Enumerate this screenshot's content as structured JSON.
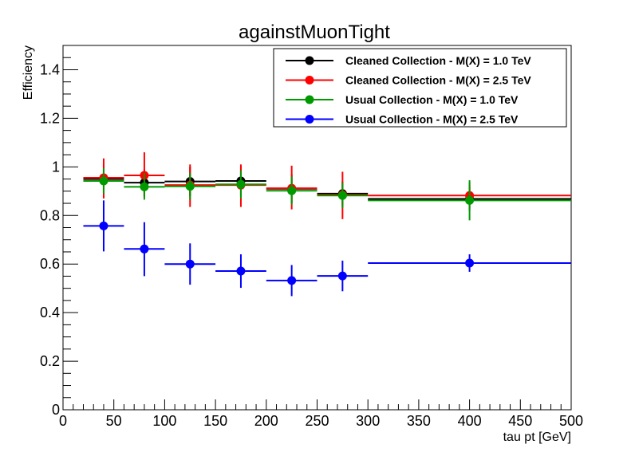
{
  "chart_data": {
    "type": "scatter",
    "title": "againstMuonTight",
    "xlabel": "tau pt [GeV]",
    "ylabel": "Efficiency",
    "xlim": [
      0,
      500
    ],
    "ylim": [
      0,
      1.5
    ],
    "xticks": [
      "0",
      "50",
      "100",
      "150",
      "200",
      "250",
      "300",
      "350",
      "400",
      "450",
      "500"
    ],
    "yticks": [
      "0",
      "0.2",
      "0.4",
      "0.6",
      "0.8",
      "1",
      "1.2",
      "1.4"
    ],
    "grid": false,
    "legend_position": "top-right",
    "series": [
      {
        "name": "Cleaned Collection - M(X) = 1.0 TeV",
        "color": "#000000",
        "points": [
          {
            "x": 40,
            "xlo": 20,
            "xhi": 60,
            "y": 0.95,
            "ylo": 0.89,
            "yhi": 1.01
          },
          {
            "x": 80,
            "xlo": 60,
            "xhi": 100,
            "y": 0.935,
            "ylo": 0.88,
            "yhi": 0.99
          },
          {
            "x": 125,
            "xlo": 100,
            "xhi": 150,
            "y": 0.94,
            "ylo": 0.88,
            "yhi": 1.0
          },
          {
            "x": 175,
            "xlo": 150,
            "xhi": 200,
            "y": 0.942,
            "ylo": 0.88,
            "yhi": 1.0
          },
          {
            "x": 225,
            "xlo": 200,
            "xhi": 250,
            "y": 0.91,
            "ylo": 0.85,
            "yhi": 0.97
          },
          {
            "x": 275,
            "xlo": 250,
            "xhi": 300,
            "y": 0.89,
            "ylo": 0.84,
            "yhi": 0.94
          },
          {
            "x": 400,
            "xlo": 300,
            "xhi": 500,
            "y": 0.868,
            "ylo": 0.82,
            "yhi": 0.92
          }
        ]
      },
      {
        "name": "Cleaned Collection - M(X) = 2.5 TeV",
        "color": "#ff0000",
        "points": [
          {
            "x": 40,
            "xlo": 20,
            "xhi": 60,
            "y": 0.955,
            "ylo": 0.87,
            "yhi": 1.035
          },
          {
            "x": 80,
            "xlo": 60,
            "xhi": 100,
            "y": 0.965,
            "ylo": 0.875,
            "yhi": 1.06
          },
          {
            "x": 125,
            "xlo": 100,
            "xhi": 150,
            "y": 0.925,
            "ylo": 0.835,
            "yhi": 1.01
          },
          {
            "x": 175,
            "xlo": 150,
            "xhi": 200,
            "y": 0.925,
            "ylo": 0.835,
            "yhi": 1.01
          },
          {
            "x": 225,
            "xlo": 200,
            "xhi": 250,
            "y": 0.912,
            "ylo": 0.825,
            "yhi": 1.005
          },
          {
            "x": 275,
            "xlo": 250,
            "xhi": 300,
            "y": 0.885,
            "ylo": 0.785,
            "yhi": 0.98
          },
          {
            "x": 400,
            "xlo": 300,
            "xhi": 500,
            "y": 0.882,
            "ylo": 0.83,
            "yhi": 0.935
          }
        ]
      },
      {
        "name": "Usual Collection - M(X) = 1.0 TeV",
        "color": "#009900",
        "points": [
          {
            "x": 40,
            "xlo": 20,
            "xhi": 60,
            "y": 0.942,
            "ylo": 0.89,
            "yhi": 0.995
          },
          {
            "x": 80,
            "xlo": 60,
            "xhi": 100,
            "y": 0.918,
            "ylo": 0.865,
            "yhi": 0.975
          },
          {
            "x": 125,
            "xlo": 100,
            "xhi": 150,
            "y": 0.92,
            "ylo": 0.865,
            "yhi": 0.975
          },
          {
            "x": 175,
            "xlo": 150,
            "xhi": 200,
            "y": 0.928,
            "ylo": 0.87,
            "yhi": 0.985
          },
          {
            "x": 225,
            "xlo": 200,
            "xhi": 250,
            "y": 0.902,
            "ylo": 0.845,
            "yhi": 0.96
          },
          {
            "x": 275,
            "xlo": 250,
            "xhi": 300,
            "y": 0.882,
            "ylo": 0.83,
            "yhi": 0.935
          },
          {
            "x": 400,
            "xlo": 300,
            "xhi": 500,
            "y": 0.862,
            "ylo": 0.78,
            "yhi": 0.945
          }
        ]
      },
      {
        "name": "Usual Collection - M(X) = 2.5 TeV",
        "color": "#0000ff",
        "points": [
          {
            "x": 40,
            "xlo": 20,
            "xhi": 60,
            "y": 0.757,
            "ylo": 0.652,
            "yhi": 0.862
          },
          {
            "x": 80,
            "xlo": 60,
            "xhi": 100,
            "y": 0.662,
            "ylo": 0.55,
            "yhi": 0.772
          },
          {
            "x": 125,
            "xlo": 100,
            "xhi": 150,
            "y": 0.6,
            "ylo": 0.515,
            "yhi": 0.685
          },
          {
            "x": 175,
            "xlo": 150,
            "xhi": 200,
            "y": 0.571,
            "ylo": 0.502,
            "yhi": 0.64
          },
          {
            "x": 225,
            "xlo": 200,
            "xhi": 250,
            "y": 0.532,
            "ylo": 0.468,
            "yhi": 0.596
          },
          {
            "x": 275,
            "xlo": 250,
            "xhi": 300,
            "y": 0.551,
            "ylo": 0.488,
            "yhi": 0.614
          },
          {
            "x": 400,
            "xlo": 300,
            "xhi": 500,
            "y": 0.604,
            "ylo": 0.568,
            "yhi": 0.64
          }
        ]
      }
    ]
  }
}
